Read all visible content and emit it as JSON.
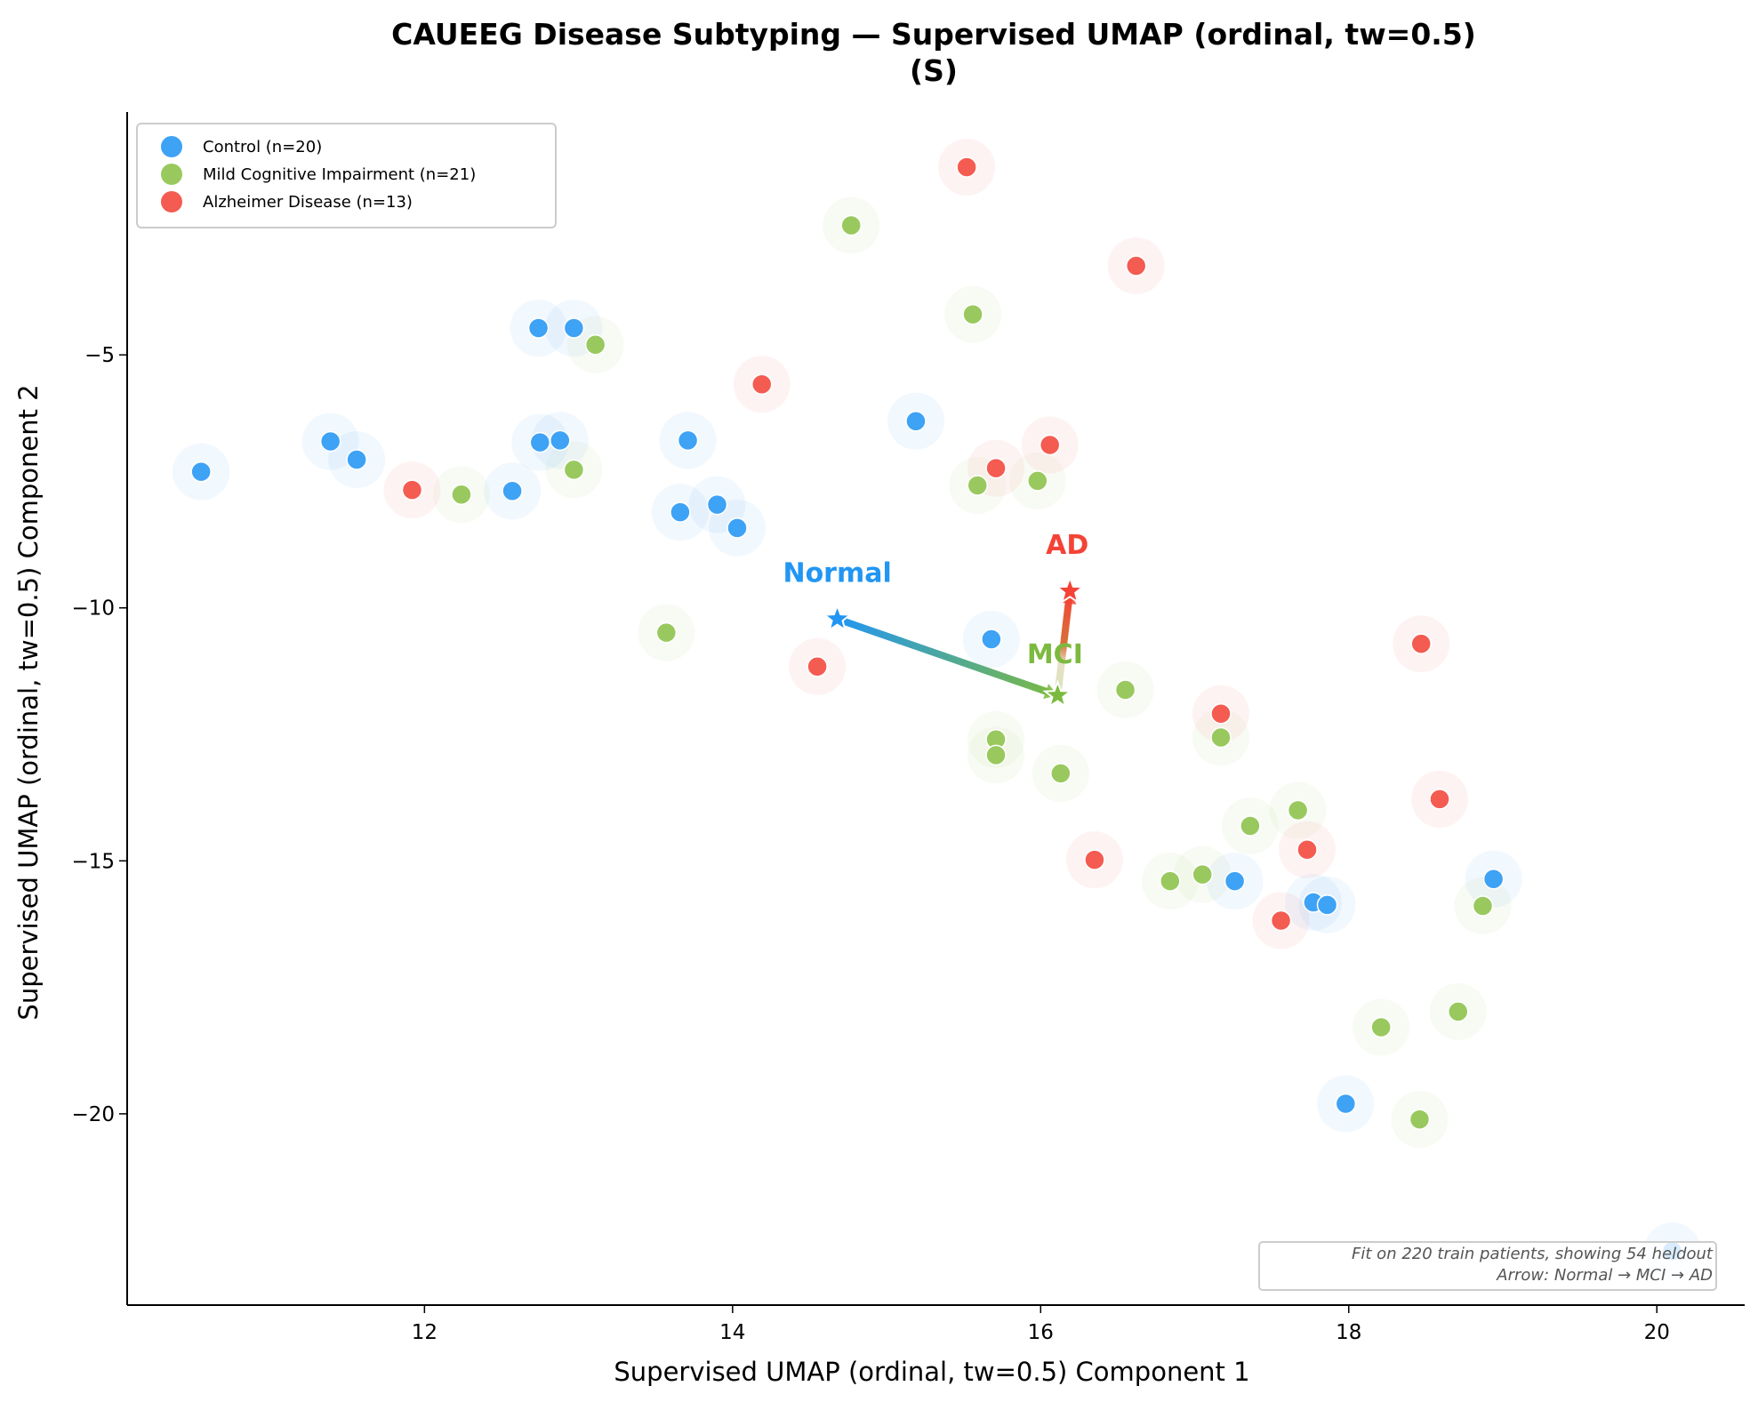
{
  "chart_data": {
    "type": "scatter",
    "title": "CAUEEG Disease Subtyping — Supervised UMAP (ordinal, tw=0.5)",
    "title_line2": "(S)",
    "xlabel": "Supervised UMAP (ordinal, tw=0.5) Component 1",
    "ylabel": "Supervised UMAP (ordinal, tw=0.5) Component 2",
    "xlim": [
      10.07,
      20.57
    ],
    "ylim": [
      -23.78,
      -0.2
    ],
    "xticks": [
      12,
      14,
      16,
      18,
      20
    ],
    "xtick_labels": [
      "12",
      "14",
      "16",
      "18",
      "20"
    ],
    "yticks": [
      -5,
      -10,
      -15,
      -20
    ],
    "ytick_labels": [
      "−5",
      "−10",
      "−15",
      "−20"
    ],
    "grid": false,
    "legend_position": "top-left",
    "series": [
      {
        "name": "Control (n=20)",
        "color": "#3ea2f5",
        "points": [
          [
            10.55,
            -7.31
          ],
          [
            11.39,
            -6.71
          ],
          [
            11.56,
            -7.07
          ],
          [
            12.57,
            -7.69
          ],
          [
            12.75,
            -6.73
          ],
          [
            12.88,
            -6.69
          ],
          [
            12.74,
            -4.47
          ],
          [
            12.97,
            -4.47
          ],
          [
            13.71,
            -6.69
          ],
          [
            13.66,
            -8.11
          ],
          [
            13.9,
            -7.96
          ],
          [
            14.03,
            -8.42
          ],
          [
            15.19,
            -6.31
          ],
          [
            15.68,
            -10.62
          ],
          [
            17.26,
            -15.4
          ],
          [
            17.77,
            -15.82
          ],
          [
            17.86,
            -15.87
          ],
          [
            18.94,
            -15.36
          ],
          [
            17.98,
            -19.8
          ],
          [
            20.1,
            -22.71
          ]
        ]
      },
      {
        "name": "Mild Cognitive Impairment (n=21)",
        "color": "#99c95e",
        "points": [
          [
            14.77,
            -2.44
          ],
          [
            15.56,
            -4.2
          ],
          [
            13.11,
            -4.8
          ],
          [
            12.24,
            -7.76
          ],
          [
            12.97,
            -7.27
          ],
          [
            15.59,
            -7.58
          ],
          [
            15.98,
            -7.49
          ],
          [
            13.57,
            -10.49
          ],
          [
            16.55,
            -11.62
          ],
          [
            15.71,
            -12.6
          ],
          [
            15.71,
            -12.91
          ],
          [
            16.13,
            -13.27
          ],
          [
            17.17,
            -12.56
          ],
          [
            17.67,
            -14.0
          ],
          [
            17.36,
            -14.31
          ],
          [
            17.05,
            -15.27
          ],
          [
            16.84,
            -15.4
          ],
          [
            18.87,
            -15.89
          ],
          [
            18.21,
            -18.29
          ],
          [
            18.71,
            -17.98
          ],
          [
            18.46,
            -20.11
          ]
        ]
      },
      {
        "name": "Alzheimer Disease (n=13)",
        "color": "#f45b51",
        "points": [
          [
            15.52,
            -1.29
          ],
          [
            16.62,
            -3.24
          ],
          [
            14.19,
            -5.58
          ],
          [
            11.92,
            -7.67
          ],
          [
            15.71,
            -7.24
          ],
          [
            16.06,
            -6.78
          ],
          [
            14.55,
            -11.16
          ],
          [
            18.47,
            -10.71
          ],
          [
            17.17,
            -12.09
          ],
          [
            18.59,
            -13.78
          ],
          [
            16.35,
            -14.98
          ],
          [
            17.73,
            -14.78
          ],
          [
            17.56,
            -16.18
          ]
        ]
      }
    ],
    "centroids": [
      {
        "label": "Normal",
        "x": 14.68,
        "y": -10.22,
        "color": "#2196f3"
      },
      {
        "label": "MCI",
        "x": 16.11,
        "y": -11.73,
        "color": "#7cba3f"
      },
      {
        "label": "AD",
        "x": 16.19,
        "y": -9.67,
        "color": "#f44336"
      }
    ],
    "trajectory": [
      "Normal",
      "MCI",
      "AD"
    ],
    "annotation_lines": [
      "Fit on 220 train patients, showing 54 heldout",
      "Arrow: Normal → MCI → AD"
    ]
  }
}
